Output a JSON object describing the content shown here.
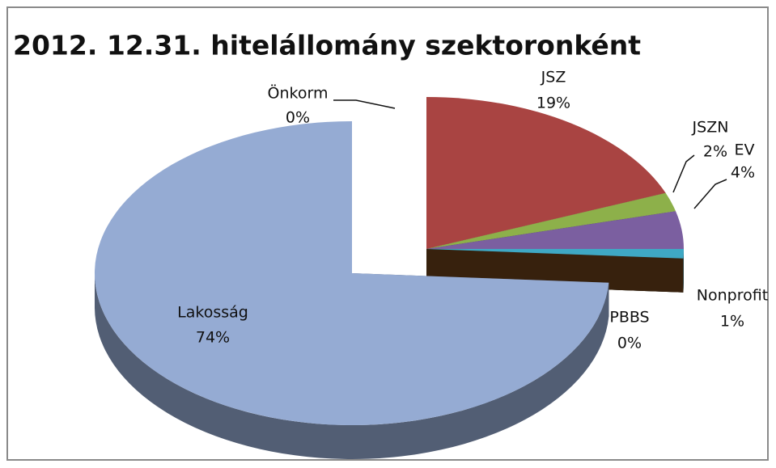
{
  "chart_data": {
    "type": "pie",
    "title": "2012. 12.31.  hitelállomány szektoronként",
    "categories": [
      "Önkorm",
      "JSZ",
      "JSZN",
      "EV",
      "Nonprofit",
      "PBBS",
      "Lakosság"
    ],
    "values": [
      0,
      19,
      2,
      4,
      1,
      0,
      74
    ],
    "value_labels": [
      "0%",
      "19%",
      "2%",
      "4%",
      "1%",
      "0%",
      "74%"
    ],
    "colors": [
      "#4f81bd",
      "#a94442",
      "#8db04a",
      "#7b5fa0",
      "#3fa8c4",
      "#7a4a1c",
      "#95abd3"
    ]
  }
}
